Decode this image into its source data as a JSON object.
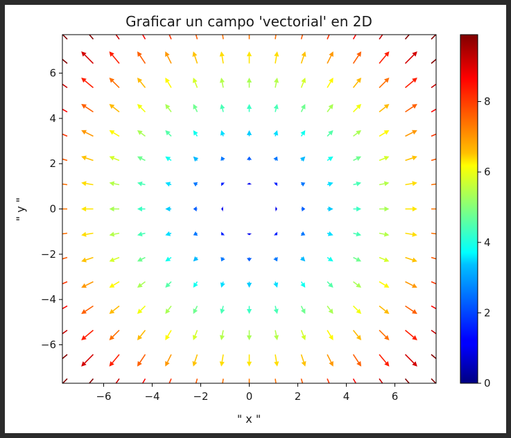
{
  "chart_data": {
    "type": "quiver",
    "title": "Graficar un campo 'vectorial' en 2D",
    "xlabel": "\" x \"",
    "ylabel": "\" y \"",
    "xlim": [
      -7.7,
      7.7
    ],
    "ylim": [
      -7.7,
      7.7
    ],
    "xticks": [
      -6,
      -4,
      -2,
      0,
      2,
      4,
      6
    ],
    "yticks": [
      -6,
      -4,
      -2,
      0,
      2,
      4,
      6
    ],
    "xtick_labels": [
      "−6",
      "−4",
      "−2",
      "0",
      "2",
      "4",
      "6"
    ],
    "ytick_labels": [
      "−6",
      "−4",
      "−2",
      "0",
      "2",
      "4",
      "6"
    ],
    "grid": false,
    "field": {
      "description": "U = x, V = y; color = magnitude sqrt(x^2 + y^2)",
      "u": "x",
      "v": "y",
      "grid_min": -7.5,
      "grid_max": 7.5,
      "grid_count": 15
    },
    "colormap": "jet",
    "colorbar": {
      "range": [
        0,
        9.9
      ],
      "ticks": [
        0,
        2,
        4,
        6,
        8
      ],
      "tick_labels": [
        "0",
        "2",
        "4",
        "6",
        "8"
      ]
    }
  }
}
